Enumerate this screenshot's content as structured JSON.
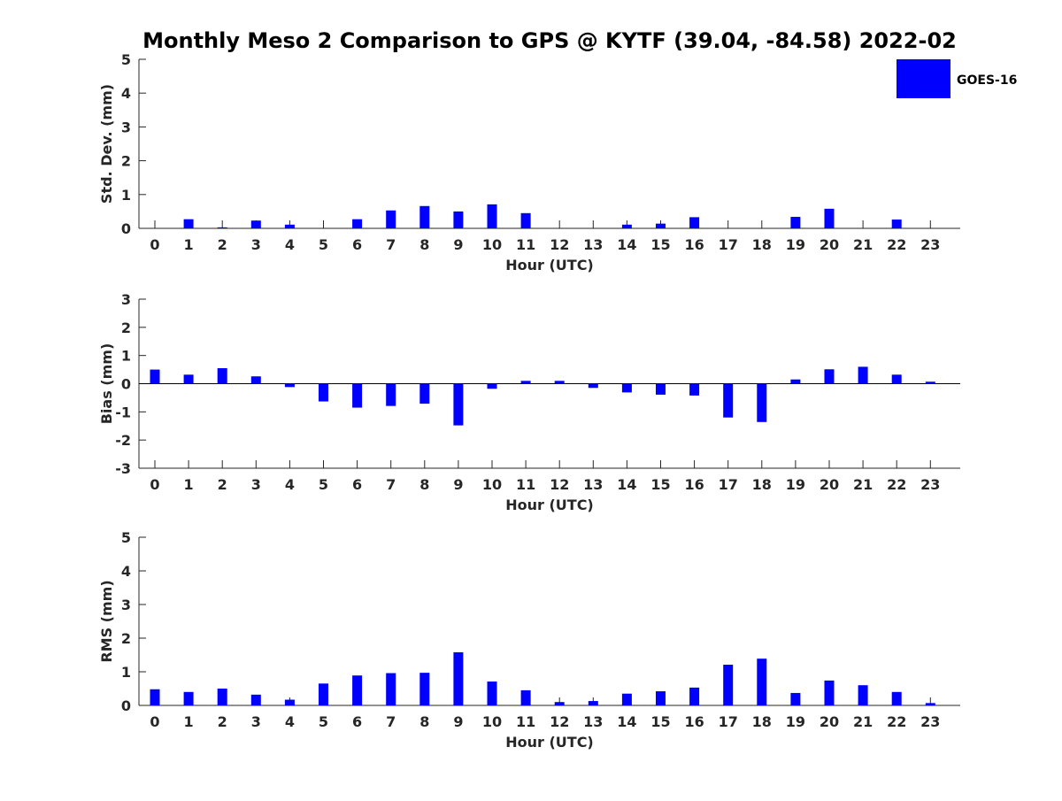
{
  "chart_data": {
    "type": "bar",
    "title": "Monthly Meso 2 Comparison to GPS @ KYTF (39.04, -84.58) 2022-02",
    "legend": {
      "label": "GOES-16",
      "color": "#0000ff",
      "placement": "top-right"
    },
    "bar_color": "#0000ff",
    "categories": [
      "0",
      "1",
      "2",
      "3",
      "4",
      "5",
      "6",
      "7",
      "8",
      "9",
      "10",
      "11",
      "12",
      "13",
      "14",
      "15",
      "16",
      "17",
      "18",
      "19",
      "20",
      "21",
      "22",
      "23"
    ],
    "panels": [
      {
        "name": "std-dev",
        "ylabel": "Std. Dev. (mm)",
        "xlabel": "Hour (UTC)",
        "ylim": [
          0,
          5
        ],
        "yticks": [
          "0",
          "1",
          "2",
          "3",
          "4",
          "5"
        ],
        "zero_line": false,
        "values": [
          0,
          0.27,
          0.03,
          0.23,
          0.11,
          0,
          0.27,
          0.53,
          0.66,
          0.5,
          0.71,
          0.45,
          0,
          0,
          0.11,
          0.14,
          0.33,
          0,
          0,
          0.34,
          0.58,
          0,
          0.26,
          0
        ]
      },
      {
        "name": "bias",
        "ylabel": "Bias (mm)",
        "xlabel": "Hour (UTC)",
        "ylim": [
          -3,
          3
        ],
        "yticks": [
          "-3",
          "-2",
          "-1",
          "0",
          "1",
          "2",
          "3"
        ],
        "zero_line": true,
        "values": [
          0.5,
          0.32,
          0.55,
          0.26,
          -0.12,
          -0.63,
          -0.85,
          -0.79,
          -0.71,
          -1.48,
          -0.18,
          0.1,
          0.1,
          -0.15,
          -0.31,
          -0.39,
          -0.42,
          -1.2,
          -1.36,
          0.15,
          0.51,
          0.6,
          0.32,
          0.07
        ]
      },
      {
        "name": "rms",
        "ylabel": "RMS (mm)",
        "xlabel": "Hour (UTC)",
        "ylim": [
          0,
          5
        ],
        "yticks": [
          "0",
          "1",
          "2",
          "3",
          "4",
          "5"
        ],
        "zero_line": false,
        "values": [
          0.48,
          0.4,
          0.5,
          0.32,
          0.17,
          0.65,
          0.89,
          0.96,
          0.97,
          1.58,
          0.71,
          0.45,
          0.1,
          0.13,
          0.35,
          0.42,
          0.53,
          1.21,
          1.39,
          0.37,
          0.74,
          0.6,
          0.4,
          0.07
        ]
      }
    ]
  }
}
